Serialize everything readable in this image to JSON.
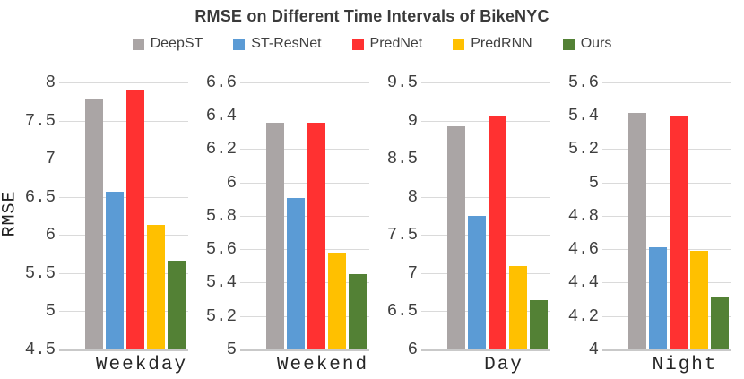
{
  "header": {
    "title": "RMSE on Different Time Intervals of BikeNYC"
  },
  "chart_data": {
    "type": "bar",
    "title": "RMSE on Different Time Intervals of BikeNYC",
    "ylabel": "RMSE",
    "legend_position": "top",
    "grid": true,
    "categories": [
      "Weekday",
      "Weekend",
      "Day",
      "Night"
    ],
    "series": [
      {
        "name": "DeepST",
        "color": "#aaa5a5",
        "values": [
          7.78,
          6.36,
          8.92,
          5.42
        ]
      },
      {
        "name": "ST-ResNet",
        "color": "#5b9bd5",
        "values": [
          6.57,
          5.91,
          7.75,
          4.61
        ]
      },
      {
        "name": "PredNet",
        "color": "#ff3131",
        "values": [
          7.89,
          6.36,
          9.07,
          5.4
        ]
      },
      {
        "name": "PredRNN",
        "color": "#ffc000",
        "values": [
          6.13,
          5.58,
          7.09,
          4.59
        ]
      },
      {
        "name": "Ours",
        "color": "#538135",
        "values": [
          5.66,
          5.45,
          6.65,
          4.31
        ]
      }
    ],
    "panel_axes": [
      {
        "category": "Weekday",
        "ylim": [
          4.5,
          8.0
        ],
        "yticks": [
          "4.5",
          "5",
          "5.5",
          "6",
          "6.5",
          "7",
          "7.5",
          "8"
        ]
      },
      {
        "category": "Weekend",
        "ylim": [
          5.0,
          6.6
        ],
        "yticks": [
          "5",
          "5.2",
          "5.4",
          "5.6",
          "5.8",
          "6",
          "6.2",
          "6.4",
          "6.6"
        ]
      },
      {
        "category": "Day",
        "ylim": [
          6.0,
          9.5
        ],
        "yticks": [
          "6",
          "6.5",
          "7",
          "7.5",
          "8",
          "8.5",
          "9",
          "9.5"
        ]
      },
      {
        "category": "Night",
        "ylim": [
          4.0,
          5.6
        ],
        "yticks": [
          "4",
          "4.2",
          "4.4",
          "4.6",
          "4.8",
          "5",
          "5.2",
          "5.4",
          "5.6"
        ]
      }
    ]
  }
}
